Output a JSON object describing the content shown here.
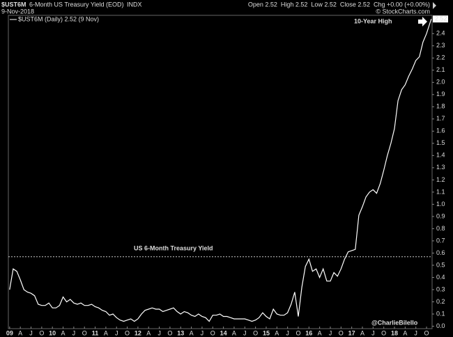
{
  "header": {
    "symbol": "$UST6M",
    "name": "6-Month US Treasury Yield (EOD)",
    "exchange": "INDX",
    "date": "9-Nov-2018",
    "quote": "Open 2.52  High 2.52  Low 2.52  Close 2.52  Chg +0.00 (+0.00%)",
    "credit": "© StockCharts.com"
  },
  "chart_data": {
    "type": "line",
    "legend": "$UST6M (Daily) 2.52 (9 Nov)",
    "annotations": {
      "high": "10-Year High",
      "series_title": "US 6-Month Treasury Yield",
      "handle": "@CharlieBilello"
    },
    "last_label": "2.52",
    "hline": 0.57,
    "x": [
      2009,
      2009.083,
      2009.167,
      2009.25,
      2009.333,
      2009.417,
      2009.5,
      2009.583,
      2009.667,
      2009.75,
      2009.833,
      2009.917,
      2010,
      2010.083,
      2010.167,
      2010.25,
      2010.333,
      2010.417,
      2010.5,
      2010.583,
      2010.667,
      2010.75,
      2010.833,
      2010.917,
      2011,
      2011.083,
      2011.167,
      2011.25,
      2011.333,
      2011.417,
      2011.5,
      2011.583,
      2011.667,
      2011.75,
      2011.833,
      2011.917,
      2012,
      2012.083,
      2012.167,
      2012.25,
      2012.333,
      2012.417,
      2012.5,
      2012.583,
      2012.667,
      2012.75,
      2012.833,
      2012.917,
      2013,
      2013.083,
      2013.167,
      2013.25,
      2013.333,
      2013.417,
      2013.5,
      2013.583,
      2013.667,
      2013.75,
      2013.833,
      2013.917,
      2014,
      2014.083,
      2014.167,
      2014.25,
      2014.333,
      2014.417,
      2014.5,
      2014.583,
      2014.667,
      2014.75,
      2014.833,
      2014.917,
      2015,
      2015.083,
      2015.167,
      2015.25,
      2015.333,
      2015.417,
      2015.5,
      2015.583,
      2015.667,
      2015.75,
      2015.833,
      2015.917,
      2016,
      2016.083,
      2016.167,
      2016.25,
      2016.333,
      2016.417,
      2016.5,
      2016.583,
      2016.667,
      2016.75,
      2016.833,
      2016.917,
      2017,
      2017.083,
      2017.167,
      2017.25,
      2017.333,
      2017.417,
      2017.5,
      2017.583,
      2017.667,
      2017.75,
      2017.833,
      2017.917,
      2018,
      2018.083,
      2018.167,
      2018.25,
      2018.333,
      2018.417,
      2018.5,
      2018.583,
      2018.667,
      2018.75,
      2018.86
    ],
    "series": [
      {
        "name": "$UST6M",
        "color": "#ffffff",
        "values": [
          0.3,
          0.47,
          0.45,
          0.38,
          0.3,
          0.28,
          0.27,
          0.25,
          0.18,
          0.17,
          0.17,
          0.19,
          0.15,
          0.15,
          0.17,
          0.24,
          0.2,
          0.22,
          0.19,
          0.18,
          0.19,
          0.17,
          0.17,
          0.18,
          0.16,
          0.15,
          0.13,
          0.12,
          0.09,
          0.1,
          0.07,
          0.05,
          0.04,
          0.05,
          0.06,
          0.04,
          0.06,
          0.1,
          0.13,
          0.14,
          0.15,
          0.14,
          0.14,
          0.12,
          0.13,
          0.14,
          0.15,
          0.12,
          0.1,
          0.12,
          0.11,
          0.09,
          0.08,
          0.1,
          0.08,
          0.07,
          0.04,
          0.09,
          0.09,
          0.1,
          0.08,
          0.08,
          0.07,
          0.06,
          0.06,
          0.06,
          0.06,
          0.05,
          0.04,
          0.05,
          0.07,
          0.11,
          0.08,
          0.06,
          0.14,
          0.1,
          0.09,
          0.09,
          0.11,
          0.18,
          0.28,
          0.08,
          0.32,
          0.49,
          0.55,
          0.45,
          0.47,
          0.4,
          0.47,
          0.37,
          0.37,
          0.44,
          0.41,
          0.47,
          0.55,
          0.61,
          0.62,
          0.63,
          0.91,
          0.98,
          1.06,
          1.1,
          1.12,
          1.09,
          1.17,
          1.28,
          1.4,
          1.5,
          1.62,
          1.85,
          1.94,
          1.98,
          2.05,
          2.11,
          2.18,
          2.21,
          2.33,
          2.4,
          2.52
        ]
      }
    ],
    "xlim": [
      2008.97,
      2018.88
    ],
    "xticks": [
      {
        "value": 2009,
        "label": "09"
      },
      {
        "value": 2009.25,
        "label": "A"
      },
      {
        "value": 2009.5,
        "label": "J"
      },
      {
        "value": 2009.75,
        "label": "O"
      },
      {
        "value": 2010,
        "label": "10"
      },
      {
        "value": 2010.25,
        "label": "A"
      },
      {
        "value": 2010.5,
        "label": "J"
      },
      {
        "value": 2010.75,
        "label": "O"
      },
      {
        "value": 2011,
        "label": "11"
      },
      {
        "value": 2011.25,
        "label": "A"
      },
      {
        "value": 2011.5,
        "label": "J"
      },
      {
        "value": 2011.75,
        "label": "O"
      },
      {
        "value": 2012,
        "label": "12"
      },
      {
        "value": 2012.25,
        "label": "A"
      },
      {
        "value": 2012.5,
        "label": "J"
      },
      {
        "value": 2012.75,
        "label": "O"
      },
      {
        "value": 2013,
        "label": "13"
      },
      {
        "value": 2013.25,
        "label": "A"
      },
      {
        "value": 2013.5,
        "label": "J"
      },
      {
        "value": 2013.75,
        "label": "O"
      },
      {
        "value": 2014,
        "label": "14"
      },
      {
        "value": 2014.25,
        "label": "A"
      },
      {
        "value": 2014.5,
        "label": "J"
      },
      {
        "value": 2014.75,
        "label": "O"
      },
      {
        "value": 2015,
        "label": "15"
      },
      {
        "value": 2015.25,
        "label": "A"
      },
      {
        "value": 2015.5,
        "label": "J"
      },
      {
        "value": 2015.75,
        "label": "O"
      },
      {
        "value": 2016,
        "label": "16"
      },
      {
        "value": 2016.25,
        "label": "A"
      },
      {
        "value": 2016.5,
        "label": "J"
      },
      {
        "value": 2016.75,
        "label": "O"
      },
      {
        "value": 2017,
        "label": "17"
      },
      {
        "value": 2017.25,
        "label": "A"
      },
      {
        "value": 2017.5,
        "label": "J"
      },
      {
        "value": 2017.75,
        "label": "O"
      },
      {
        "value": 2018,
        "label": "18"
      },
      {
        "value": 2018.25,
        "label": "A"
      },
      {
        "value": 2018.5,
        "label": "J"
      },
      {
        "value": 2018.75,
        "label": "O"
      }
    ],
    "ylim": [
      -0.02,
      2.55
    ],
    "yticks": [
      {
        "value": 0,
        "label": "0.0"
      },
      0.1,
      0.2,
      0.3,
      0.4,
      0.5,
      0.6,
      0.7,
      0.8,
      0.9,
      {
        "value": 1,
        "label": "1.0"
      },
      1.1,
      1.2,
      1.3,
      1.4,
      1.5,
      1.6,
      1.7,
      1.8,
      1.9,
      {
        "value": 2,
        "label": "2.0"
      },
      2.1,
      2.2,
      2.3,
      2.4
    ]
  }
}
